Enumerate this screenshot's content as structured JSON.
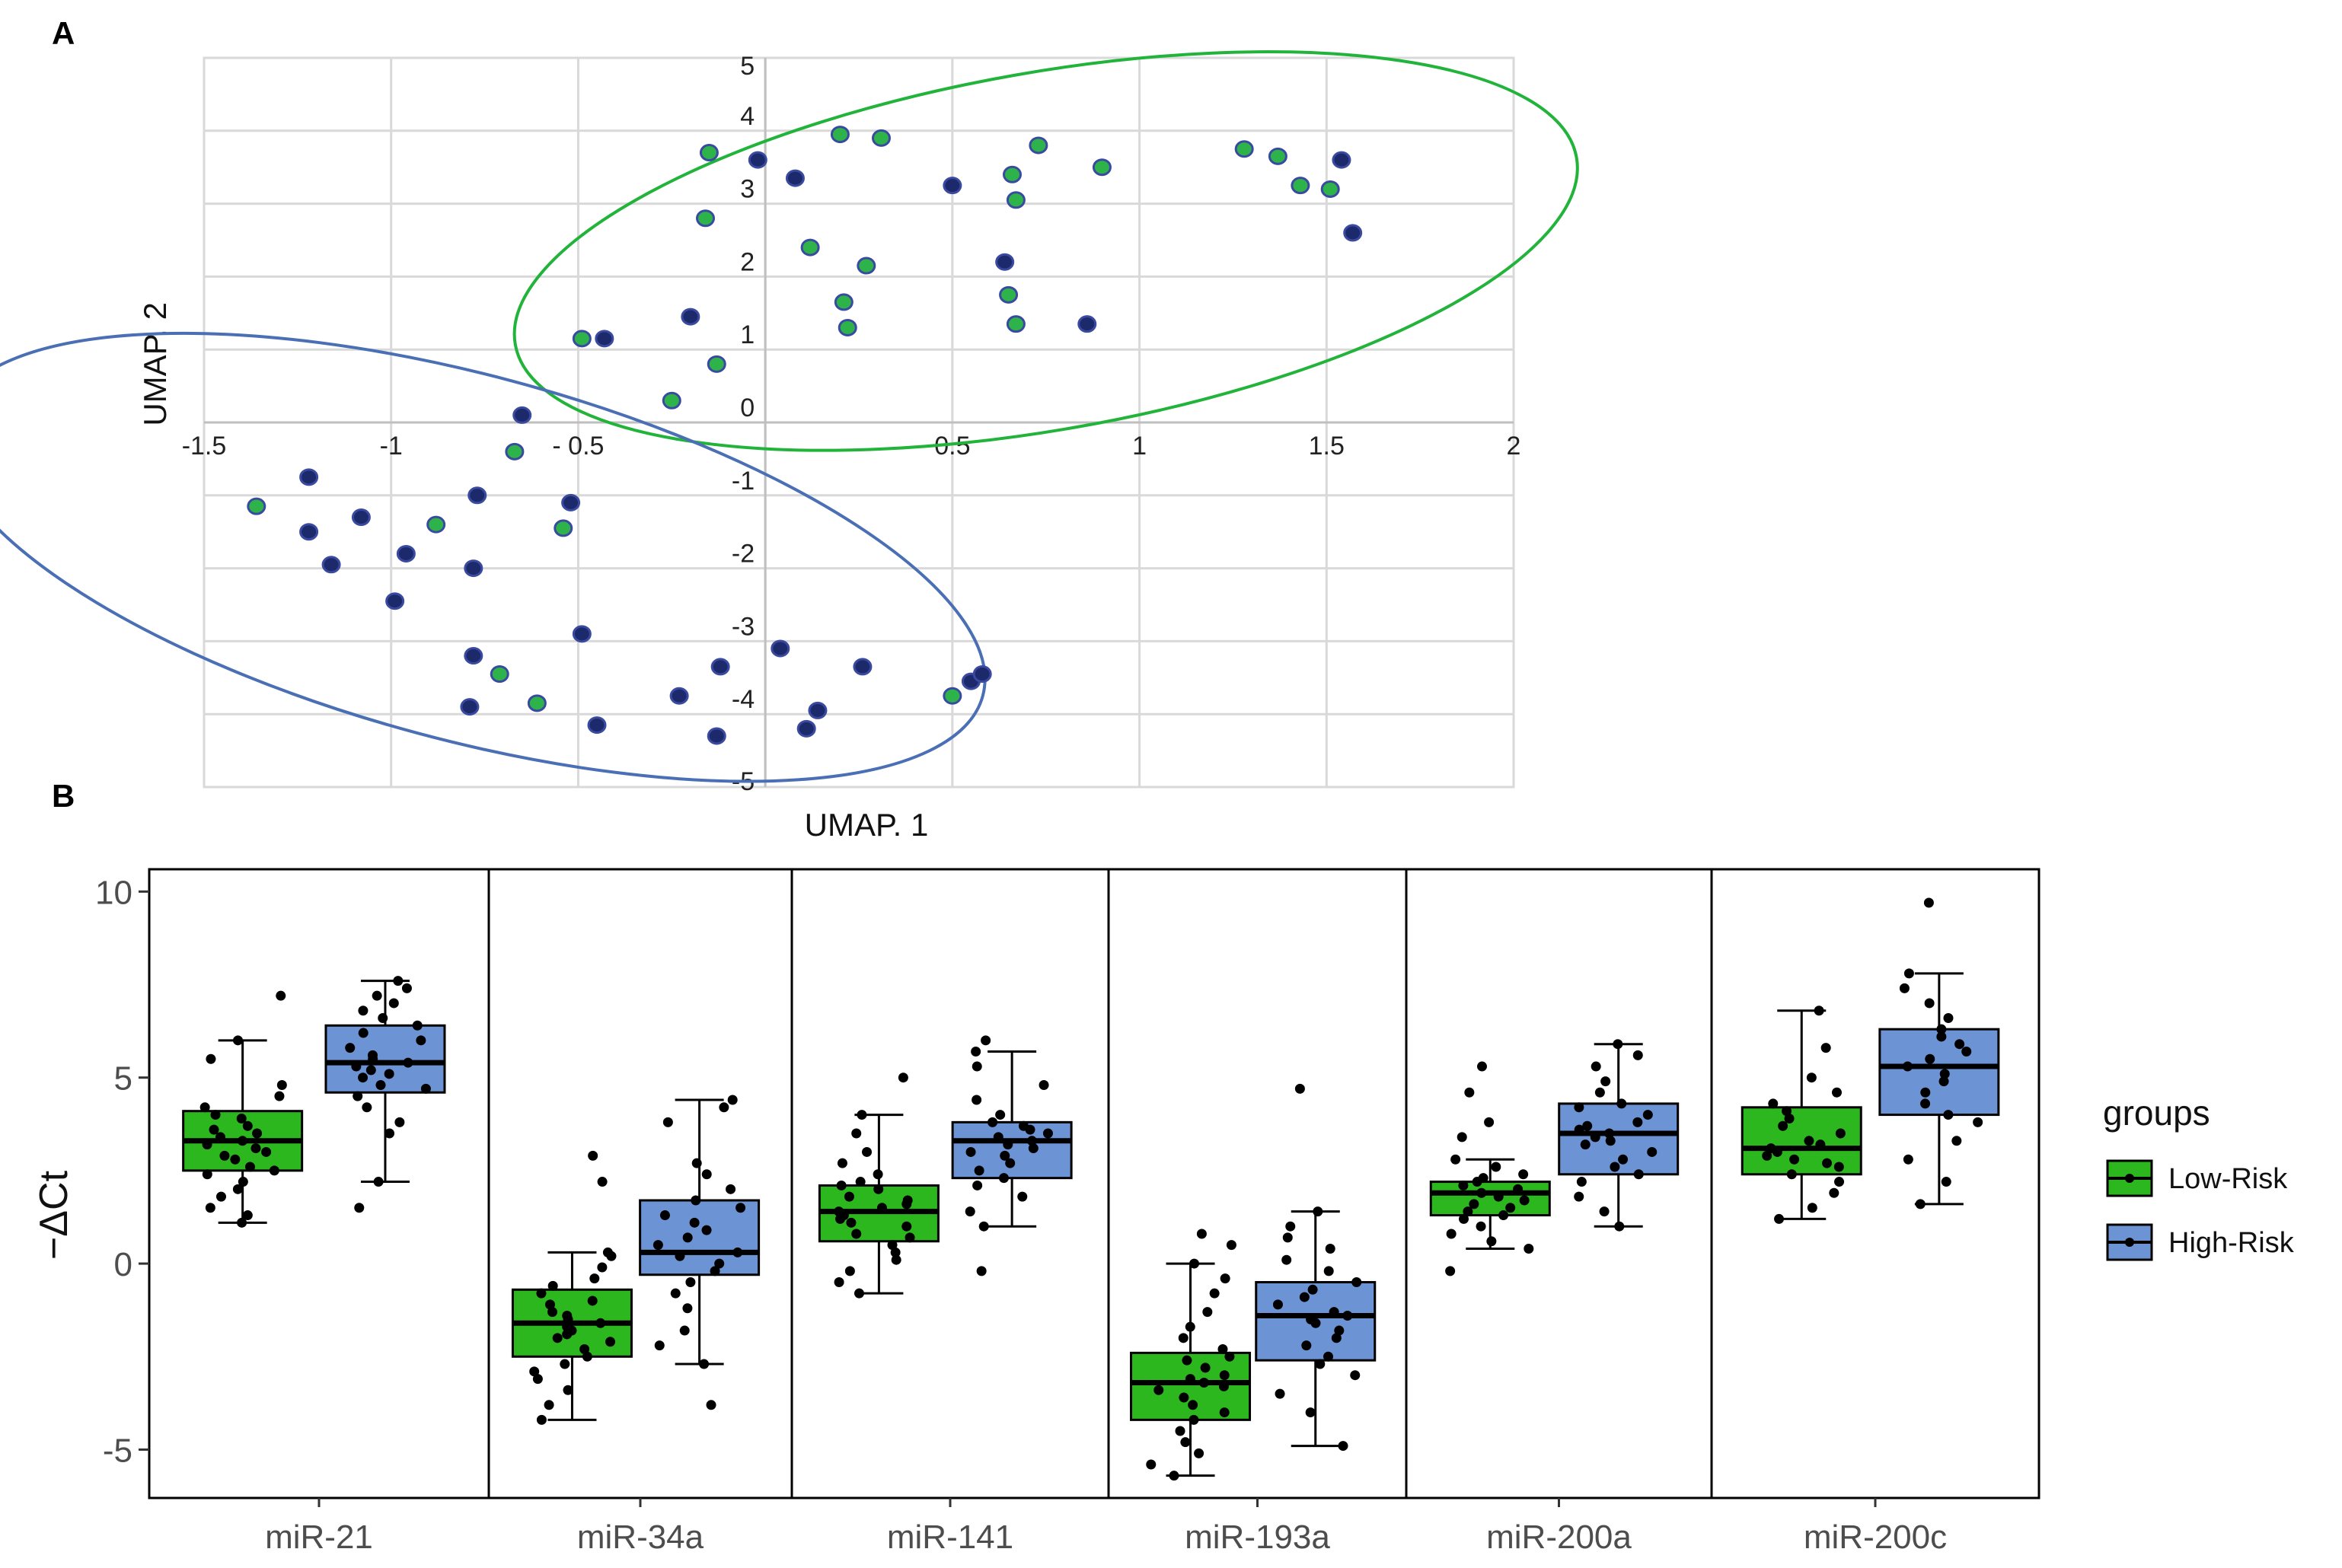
{
  "panel_a_letter": "A",
  "panel_b_letter": "B",
  "chart_data": [
    {
      "type": "scatter",
      "panel": "A",
      "xlabel": "UMAP. 1",
      "ylabel": "UMAP. 2",
      "xlim": [
        -1.5,
        2
      ],
      "ylim": [
        -5,
        5
      ],
      "xticks": [
        -1.5,
        -1,
        -0.5,
        0.5,
        1,
        1.5,
        2
      ],
      "xtick_labels": [
        "-1.5",
        "-1",
        "- 0.5",
        "0.5",
        "1",
        "1.5",
        "2"
      ],
      "yticks": [
        5,
        4,
        3,
        2,
        1,
        0,
        -1,
        -2,
        -3,
        -4,
        -5
      ],
      "ytick_labels": [
        "5",
        "4",
        "3",
        "2",
        "1",
        "0",
        "-1",
        "-2",
        "-3",
        "-4",
        "-5"
      ],
      "colors": {
        "green_point": "#2eb34a",
        "navy_point": "#1c2a6b",
        "green_ellipse": "#22b33a",
        "blue_ellipse": "#4a6fb5",
        "grid": "#d9d9d9"
      },
      "series": [
        {
          "name": "green",
          "points": [
            [
              -0.15,
              3.7
            ],
            [
              -0.16,
              2.8
            ],
            [
              0.2,
              3.95
            ],
            [
              0.31,
              3.9
            ],
            [
              0.73,
              3.8
            ],
            [
              0.9,
              3.5
            ],
            [
              1.28,
              3.75
            ],
            [
              1.37,
              3.65
            ],
            [
              1.43,
              3.25
            ],
            [
              1.51,
              3.2
            ],
            [
              0.66,
              3.4
            ],
            [
              0.67,
              3.05
            ],
            [
              0.12,
              2.4
            ],
            [
              0.27,
              2.15
            ],
            [
              0.65,
              1.75
            ],
            [
              0.67,
              1.35
            ],
            [
              0.21,
              1.65
            ],
            [
              0.22,
              1.3
            ],
            [
              -0.49,
              1.15
            ],
            [
              -0.13,
              0.8
            ],
            [
              -0.25,
              0.3
            ],
            [
              -0.67,
              -0.4
            ],
            [
              -0.88,
              -1.4
            ],
            [
              -0.54,
              -1.45
            ],
            [
              -1.36,
              -1.15
            ],
            [
              -0.71,
              -3.45
            ],
            [
              -0.61,
              -3.85
            ],
            [
              0.5,
              -3.75
            ]
          ]
        },
        {
          "name": "navy",
          "points": [
            [
              -0.02,
              3.6
            ],
            [
              0.08,
              3.35
            ],
            [
              0.5,
              3.25
            ],
            [
              1.54,
              3.6
            ],
            [
              1.57,
              2.6
            ],
            [
              0.64,
              2.2
            ],
            [
              0.86,
              1.35
            ],
            [
              -0.43,
              1.15
            ],
            [
              -0.2,
              1.45
            ],
            [
              -0.65,
              0.1
            ],
            [
              -1.22,
              -0.75
            ],
            [
              -1.22,
              -1.5
            ],
            [
              -1.08,
              -1.3
            ],
            [
              -0.77,
              -1.0
            ],
            [
              -0.52,
              -1.1
            ],
            [
              -1.16,
              -1.95
            ],
            [
              -0.96,
              -1.8
            ],
            [
              -0.78,
              -2.0
            ],
            [
              -0.99,
              -2.45
            ],
            [
              -0.49,
              -2.9
            ],
            [
              -0.78,
              -3.2
            ],
            [
              -0.79,
              -3.9
            ],
            [
              -0.45,
              -4.15
            ],
            [
              -0.23,
              -3.75
            ],
            [
              -0.12,
              -3.35
            ],
            [
              0.04,
              -3.1
            ],
            [
              0.26,
              -3.35
            ],
            [
              0.14,
              -3.95
            ],
            [
              0.11,
              -4.2
            ],
            [
              -0.13,
              -4.3
            ],
            [
              0.55,
              -3.55
            ],
            [
              0.58,
              -3.45
            ]
          ]
        }
      ],
      "ellipses": [
        {
          "name": "green-cluster",
          "center": [
            0.75,
            2.35
          ],
          "semi_axes": [
            1.44,
            2.45
          ],
          "angle_deg": -10
        },
        {
          "name": "blue-cluster",
          "center": [
            -0.8,
            -1.85
          ],
          "semi_axes": [
            1.43,
            2.5
          ],
          "angle_deg": 15
        }
      ]
    },
    {
      "type": "box",
      "panel": "B",
      "ylabel": "−ΔCt",
      "ylim": [
        -6.3,
        10.6
      ],
      "yticks": [
        10,
        5,
        0,
        -5
      ],
      "ytick_labels": [
        "10",
        "5",
        "0",
        "-5"
      ],
      "categories": [
        "miR-21",
        "miR-34a",
        "miR-141",
        "miR-193a",
        "miR-200a",
        "miR-200c"
      ],
      "legend": {
        "title": "groups",
        "position": "right",
        "entries": [
          "Low-Risk",
          "High-Risk"
        ]
      },
      "colors": {
        "Low-Risk": "#2db71f",
        "High-Risk": "#6c93d3"
      },
      "groups": [
        {
          "category": "miR-21",
          "boxes": [
            {
              "group": "Low-Risk",
              "q1": 2.5,
              "median": 3.3,
              "q3": 4.1,
              "whisker_low": 1.1,
              "whisker_high": 6.0,
              "points": [
                1.1,
                1.3,
                1.5,
                1.8,
                2.0,
                2.2,
                2.4,
                2.5,
                2.6,
                2.8,
                2.9,
                3.0,
                3.1,
                3.2,
                3.3,
                3.4,
                3.5,
                3.6,
                3.7,
                3.9,
                4.0,
                4.2,
                4.5,
                4.8,
                5.5,
                6.0,
                7.2
              ]
            },
            {
              "group": "High-Risk",
              "q1": 4.6,
              "median": 5.4,
              "q3": 6.4,
              "whisker_low": 2.2,
              "whisker_high": 7.6,
              "points": [
                1.5,
                2.2,
                3.5,
                3.8,
                4.2,
                4.5,
                4.7,
                4.8,
                5.0,
                5.1,
                5.2,
                5.3,
                5.4,
                5.5,
                5.6,
                5.8,
                6.0,
                6.2,
                6.4,
                6.6,
                6.8,
                7.0,
                7.2,
                7.4,
                7.6
              ]
            }
          ]
        },
        {
          "category": "miR-34a",
          "boxes": [
            {
              "group": "Low-Risk",
              "q1": -2.5,
              "median": -1.6,
              "q3": -0.7,
              "whisker_low": -4.2,
              "whisker_high": 0.3,
              "points": [
                -4.2,
                -3.8,
                -3.4,
                -3.1,
                -2.9,
                -2.7,
                -2.5,
                -2.3,
                -2.1,
                -2.0,
                -1.9,
                -1.8,
                -1.7,
                -1.6,
                -1.5,
                -1.4,
                -1.3,
                -1.1,
                -1.0,
                -0.8,
                -0.6,
                -0.4,
                -0.1,
                0.2,
                0.3,
                2.2,
                2.9
              ]
            },
            {
              "group": "High-Risk",
              "q1": -0.3,
              "median": 0.3,
              "q3": 1.7,
              "whisker_low": -2.7,
              "whisker_high": 4.4,
              "points": [
                -3.8,
                -2.7,
                -2.2,
                -1.8,
                -1.2,
                -0.8,
                -0.5,
                -0.2,
                0.0,
                0.2,
                0.3,
                0.5,
                0.7,
                0.9,
                1.1,
                1.3,
                1.5,
                1.7,
                2.0,
                2.4,
                2.7,
                3.8,
                4.2,
                4.4
              ]
            }
          ]
        },
        {
          "category": "miR-141",
          "boxes": [
            {
              "group": "Low-Risk",
              "q1": 0.6,
              "median": 1.4,
              "q3": 2.1,
              "whisker_low": -0.8,
              "whisker_high": 4.0,
              "points": [
                -0.8,
                -0.5,
                -0.2,
                0.1,
                0.3,
                0.5,
                0.7,
                0.8,
                1.0,
                1.1,
                1.2,
                1.3,
                1.4,
                1.5,
                1.6,
                1.7,
                1.8,
                2.0,
                2.1,
                2.2,
                2.4,
                2.7,
                3.0,
                3.5,
                4.0,
                5.0
              ]
            },
            {
              "group": "High-Risk",
              "q1": 2.3,
              "median": 3.3,
              "q3": 3.8,
              "whisker_low": 1.0,
              "whisker_high": 5.7,
              "points": [
                -0.2,
                1.0,
                1.4,
                1.8,
                2.1,
                2.3,
                2.5,
                2.7,
                2.9,
                3.0,
                3.1,
                3.2,
                3.3,
                3.4,
                3.5,
                3.6,
                3.7,
                3.8,
                4.0,
                4.4,
                4.8,
                5.3,
                5.7,
                6.0
              ]
            }
          ]
        },
        {
          "category": "miR-193a",
          "boxes": [
            {
              "group": "Low-Risk",
              "q1": -4.2,
              "median": -3.2,
              "q3": -2.4,
              "whisker_low": -5.7,
              "whisker_high": 0.0,
              "points": [
                -5.7,
                -5.4,
                -5.1,
                -4.8,
                -4.5,
                -4.2,
                -4.0,
                -3.8,
                -3.6,
                -3.4,
                -3.3,
                -3.2,
                -3.1,
                -3.0,
                -2.8,
                -2.6,
                -2.5,
                -2.3,
                -2.0,
                -1.7,
                -1.3,
                -0.8,
                -0.4,
                0.0,
                0.5,
                0.8
              ]
            },
            {
              "group": "High-Risk",
              "q1": -2.6,
              "median": -1.4,
              "q3": -0.5,
              "whisker_low": -4.9,
              "whisker_high": 1.4,
              "points": [
                -4.9,
                -4.0,
                -3.5,
                -3.0,
                -2.7,
                -2.5,
                -2.2,
                -2.0,
                -1.8,
                -1.6,
                -1.5,
                -1.4,
                -1.3,
                -1.1,
                -0.9,
                -0.7,
                -0.5,
                -0.2,
                0.1,
                0.4,
                0.7,
                1.0,
                1.4,
                4.7
              ]
            }
          ]
        },
        {
          "category": "miR-200a",
          "boxes": [
            {
              "group": "Low-Risk",
              "q1": 1.3,
              "median": 1.9,
              "q3": 2.2,
              "whisker_low": 0.4,
              "whisker_high": 2.8,
              "points": [
                -0.2,
                0.4,
                0.6,
                0.8,
                1.0,
                1.2,
                1.3,
                1.4,
                1.5,
                1.6,
                1.7,
                1.8,
                1.9,
                2.0,
                2.1,
                2.2,
                2.3,
                2.4,
                2.6,
                2.8,
                3.4,
                3.8,
                4.6,
                5.3
              ]
            },
            {
              "group": "High-Risk",
              "q1": 2.4,
              "median": 3.5,
              "q3": 4.3,
              "whisker_low": 1.0,
              "whisker_high": 5.9,
              "points": [
                1.0,
                1.4,
                1.8,
                2.2,
                2.4,
                2.6,
                2.8,
                3.0,
                3.2,
                3.3,
                3.4,
                3.5,
                3.6,
                3.7,
                3.8,
                4.0,
                4.2,
                4.3,
                4.6,
                4.9,
                5.3,
                5.6,
                5.9
              ]
            }
          ]
        },
        {
          "category": "miR-200c",
          "boxes": [
            {
              "group": "Low-Risk",
              "q1": 2.4,
              "median": 3.1,
              "q3": 4.2,
              "whisker_low": 1.2,
              "whisker_high": 6.8,
              "points": [
                1.2,
                1.5,
                1.9,
                2.2,
                2.4,
                2.6,
                2.7,
                2.8,
                2.9,
                3.0,
                3.1,
                3.2,
                3.3,
                3.5,
                3.7,
                3.9,
                4.1,
                4.3,
                4.6,
                5.0,
                5.8,
                6.8
              ]
            },
            {
              "group": "High-Risk",
              "q1": 4.0,
              "median": 5.3,
              "q3": 6.3,
              "whisker_low": 1.6,
              "whisker_high": 7.8,
              "points": [
                1.6,
                2.2,
                2.8,
                3.3,
                3.8,
                4.0,
                4.3,
                4.6,
                4.9,
                5.1,
                5.3,
                5.5,
                5.7,
                5.9,
                6.1,
                6.3,
                6.6,
                7.0,
                7.4,
                7.8,
                9.7
              ]
            }
          ]
        }
      ]
    }
  ]
}
